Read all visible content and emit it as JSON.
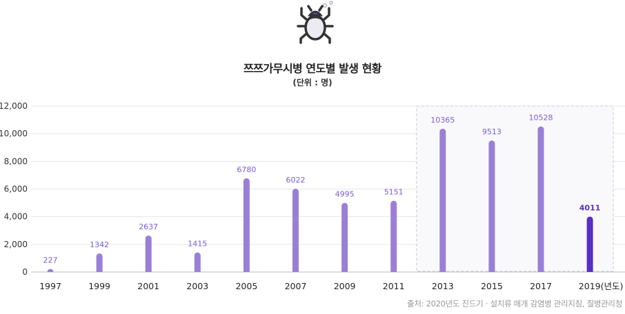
{
  "icon": "bug-icon",
  "title": "쯔쯔가무시병 연도별 발생 현황",
  "subtitle": "(단위 : 명)",
  "source": "출처: 2020년도 진드기 · 설치류 매개 감염병 관리지침, 질병관리청",
  "chart_data": {
    "type": "bar",
    "categories": [
      "1997",
      "1999",
      "2001",
      "2003",
      "2005",
      "2007",
      "2009",
      "2011",
      "2013",
      "2015",
      "2017",
      "2019(년도)"
    ],
    "values": [
      227,
      1342,
      2637,
      1415,
      6780,
      6022,
      4995,
      5151,
      10365,
      9513,
      10528,
      4011
    ],
    "ylim": [
      0,
      12000
    ],
    "yticks": [
      "0",
      "2,000",
      "4,000",
      "6,000",
      "8,000",
      "10,000",
      "12,000"
    ],
    "grid": true,
    "highlight_range": [
      "2013",
      "2019(년도)"
    ],
    "colors": {
      "bar": "#9a7fd6",
      "bar_highlight": "#5a2fc2",
      "label": "#7b5cd6",
      "grid": "#e6e6e6",
      "highlight_box": "#f9f9fb"
    }
  }
}
